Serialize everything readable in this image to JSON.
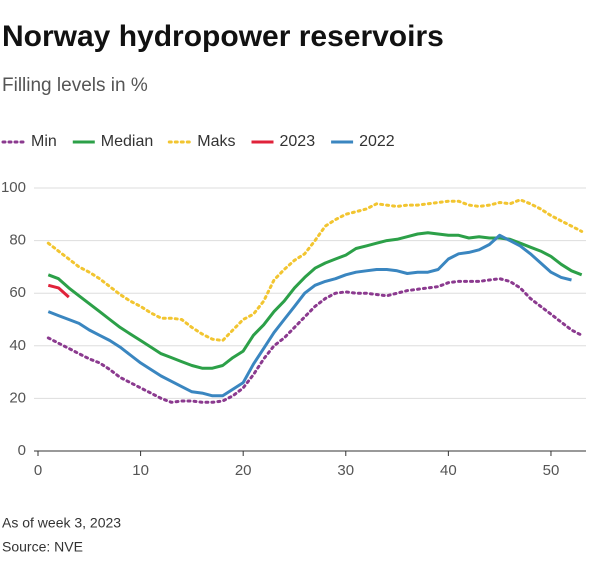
{
  "chart_data": {
    "type": "line",
    "title": "Norway hydropower reservoirs",
    "subtitle": "Filling levels in %",
    "notes": [
      "As of week 3, 2023",
      "Source: NVE"
    ],
    "x": [
      1,
      2,
      3,
      4,
      5,
      6,
      7,
      8,
      9,
      10,
      11,
      12,
      13,
      14,
      15,
      16,
      17,
      18,
      19,
      20,
      21,
      22,
      23,
      24,
      25,
      26,
      27,
      28,
      29,
      30,
      31,
      32,
      33,
      34,
      35,
      36,
      37,
      38,
      39,
      40,
      41,
      42,
      43,
      44,
      45,
      46,
      47,
      48,
      49,
      50,
      51,
      52,
      53
    ],
    "xlim": [
      0,
      54
    ],
    "xticks": [
      0,
      10,
      20,
      30,
      40,
      50
    ],
    "ylim": [
      0,
      100
    ],
    "yticks": [
      0,
      20,
      40,
      60,
      80,
      100
    ],
    "grid": true,
    "series": [
      {
        "name": "Min",
        "color": "#8b3a8f",
        "style": "dotted",
        "values": [
          43,
          41,
          39,
          37,
          35,
          33.5,
          31,
          28,
          26,
          24,
          22,
          20,
          18.5,
          19,
          19,
          18.5,
          18.5,
          19,
          21,
          24,
          29,
          35,
          40,
          43,
          47,
          51,
          55,
          58,
          60,
          60.5,
          60,
          60,
          59.5,
          59,
          60,
          61,
          61.5,
          62,
          62.5,
          64,
          64.5,
          64.5,
          64.5,
          65,
          65.5,
          64.5,
          62,
          58,
          55,
          52,
          49,
          46,
          44
        ]
      },
      {
        "name": "Median",
        "color": "#2ca048",
        "style": "solid",
        "values": [
          67,
          65.5,
          62,
          59,
          56,
          53,
          50,
          47,
          44.5,
          42,
          39.5,
          37,
          35.5,
          34,
          32.5,
          31.5,
          31.5,
          32.5,
          35.5,
          38,
          44,
          48,
          53,
          57,
          62,
          66,
          69.5,
          71.5,
          73,
          74.5,
          77,
          78,
          79,
          80,
          80.5,
          81.5,
          82.5,
          83,
          82.5,
          82,
          82,
          81,
          81.5,
          81,
          81,
          80.5,
          79,
          77.5,
          76,
          74,
          71,
          68.5,
          67
        ]
      },
      {
        "name": "Maks",
        "color": "#f2c530",
        "style": "dotted",
        "values": [
          79,
          76,
          73,
          70,
          68,
          65.5,
          62.5,
          59.5,
          57,
          55,
          52.5,
          50.5,
          50.5,
          50,
          47,
          44.5,
          42.5,
          42,
          46,
          50,
          52,
          57,
          65,
          69,
          72.5,
          75,
          80,
          85.5,
          88,
          90,
          91,
          92,
          94,
          93.5,
          93,
          93.5,
          93.5,
          94,
          94.5,
          95,
          95,
          93.5,
          93,
          93.5,
          94.5,
          94,
          95.5,
          94,
          92,
          89.5,
          87.5,
          85.5,
          83.5
        ]
      },
      {
        "name": "2023",
        "color": "#e0223a",
        "style": "solid",
        "values": [
          63,
          62,
          58.5,
          null,
          null,
          null,
          null,
          null,
          null,
          null,
          null,
          null,
          null,
          null,
          null,
          null,
          null,
          null,
          null,
          null,
          null,
          null,
          null,
          null,
          null,
          null,
          null,
          null,
          null,
          null,
          null,
          null,
          null,
          null,
          null,
          null,
          null,
          null,
          null,
          null,
          null,
          null,
          null,
          null,
          null,
          null,
          null,
          null,
          null,
          null,
          null,
          null,
          null
        ]
      },
      {
        "name": "2022",
        "color": "#3a86c0",
        "style": "solid",
        "values": [
          53,
          51.5,
          50,
          48.5,
          46,
          44,
          42,
          39.5,
          36.5,
          33.5,
          31,
          28.5,
          26.5,
          24.5,
          22.5,
          22,
          21,
          21,
          23.5,
          26,
          33,
          39,
          45,
          50,
          55,
          60,
          63,
          64.5,
          65.5,
          67,
          68,
          68.5,
          69,
          69,
          68.5,
          67.5,
          68,
          68,
          69,
          73,
          75,
          75.5,
          76.5,
          78.5,
          82,
          80,
          78,
          75,
          71.5,
          68,
          66,
          65,
          null
        ]
      }
    ]
  }
}
